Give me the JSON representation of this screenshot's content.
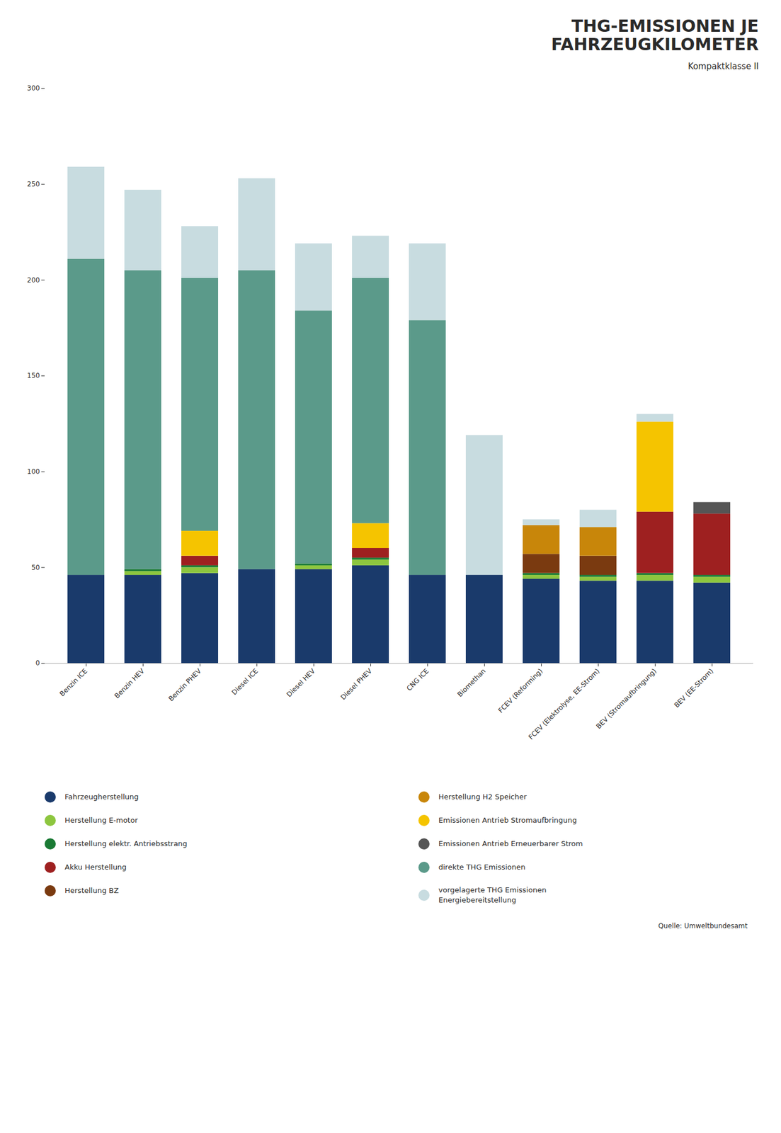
{
  "chart_data": {
    "type": "bar",
    "stacked": true,
    "title": "THG-EMISSIONEN JE\nFAHRZEUGKILOMETER",
    "subtitle": "Kompaktklasse II",
    "source": "Quelle: Umweltbundesamt",
    "categories": [
      "Benzin ICE",
      "Benzin HEV",
      "Benzin PHEV",
      "Diesel ICE",
      "Diesel HEV",
      "Diesel PHEV",
      "CNG ICE",
      "Biomethan",
      "FCEV (Reforming)",
      "FCEV (Elektrolyse, EE-Strom)",
      "BEV (Stromaufbringung)",
      "BEV (EE-Strom)"
    ],
    "series": [
      {
        "name": "Fahrzeugherstellung",
        "color": "#1a3a6b",
        "values": [
          46,
          46,
          47,
          49,
          49,
          51,
          46,
          46,
          44,
          43,
          43,
          42
        ]
      },
      {
        "name": "Herstellung E-motor",
        "color": "#8dc63f",
        "values": [
          0,
          2,
          3,
          0,
          2,
          3,
          0,
          0,
          2,
          2,
          3,
          3
        ]
      },
      {
        "name": "Herstellung elektr. Antriebsstrang",
        "color": "#1a7a34",
        "values": [
          0,
          1,
          1,
          0,
          1,
          1,
          0,
          0,
          1,
          1,
          1,
          1
        ]
      },
      {
        "name": "Akku Herstellung",
        "color": "#9e2020",
        "values": [
          0,
          0,
          5,
          0,
          0,
          5,
          0,
          0,
          0,
          0,
          32,
          32
        ]
      },
      {
        "name": "Herstellung BZ",
        "color": "#7a3a10",
        "values": [
          0,
          0,
          0,
          0,
          0,
          0,
          0,
          0,
          10,
          10,
          0,
          0
        ]
      },
      {
        "name": "Herstellung H2 Speicher",
        "color": "#c8860a",
        "values": [
          0,
          0,
          0,
          0,
          0,
          0,
          0,
          0,
          15,
          15,
          0,
          0
        ]
      },
      {
        "name": "Emissionen Antrieb Stromaufbringung",
        "color": "#f5c400",
        "values": [
          0,
          0,
          13,
          0,
          0,
          13,
          0,
          0,
          0,
          0,
          47,
          0
        ]
      },
      {
        "name": "Emissionen Antrieb Erneuerbarer Strom",
        "color": "#555555",
        "values": [
          0,
          0,
          0,
          0,
          0,
          0,
          0,
          0,
          0,
          0,
          0,
          6
        ]
      },
      {
        "name": "direkte THG Emissionen",
        "color": "#5b9a8a",
        "values": [
          165,
          156,
          132,
          156,
          132,
          128,
          133,
          0,
          0,
          0,
          0,
          0
        ]
      },
      {
        "name": "vorgelagerte THG Emissionen\nEnergiebereitstellung",
        "color": "#c8dce0",
        "values": [
          48,
          42,
          27,
          48,
          35,
          22,
          40,
          73,
          3,
          9,
          4,
          0
        ]
      }
    ],
    "ylim": [
      0,
      300
    ],
    "yticks": [
      0,
      50,
      100,
      150,
      200,
      250,
      300
    ],
    "grid": false,
    "legend": "bottom"
  }
}
